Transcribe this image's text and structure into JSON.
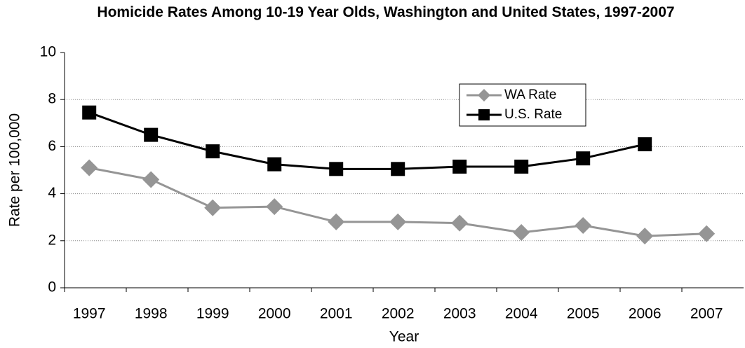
{
  "chart_data": {
    "type": "line",
    "title": "Homicide Rates Among 10-19 Year Olds, Washington and United States, 1997-2007",
    "x_label": "Year",
    "y_label": "Rate per  100,000",
    "categories": [
      "1997",
      "1998",
      "1999",
      "2000",
      "2001",
      "2002",
      "2003",
      "2004",
      "2005",
      "2006",
      "2007"
    ],
    "series": [
      {
        "name": "WA Rate",
        "color": "#959595",
        "marker": "diamond",
        "values": [
          5.1,
          4.6,
          3.4,
          3.45,
          2.8,
          2.8,
          2.75,
          2.35,
          2.65,
          2.2,
          2.3
        ]
      },
      {
        "name": "U.S. Rate",
        "color": "#000000",
        "marker": "square",
        "values": [
          7.45,
          6.5,
          5.8,
          5.25,
          5.05,
          5.05,
          5.15,
          5.15,
          5.5,
          6.1,
          null
        ]
      }
    ],
    "ylim": [
      0,
      10
    ],
    "yticks": [
      0,
      2,
      4,
      6,
      8,
      10
    ],
    "grid": true,
    "legend": "upper right"
  }
}
